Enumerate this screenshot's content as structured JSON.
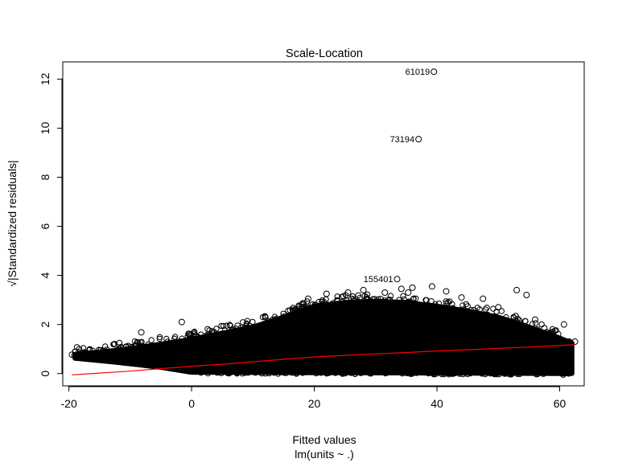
{
  "chart_data": {
    "type": "scatter",
    "title": "Scale-Location",
    "xlabel": "Fitted values",
    "xlabel_sub": "lm(units ~ .)",
    "ylabel": "√|Standardized residuals|",
    "xlim": [
      -21,
      64
    ],
    "ylim": [
      -0.5,
      12.7
    ],
    "xticks": [
      -20,
      0,
      20,
      40,
      60
    ],
    "xtick_labels": [
      "-20",
      "0",
      "20",
      "40",
      "60"
    ],
    "yticks": [
      0,
      2,
      4,
      6,
      8,
      10,
      12
    ],
    "ytick_labels": [
      "0",
      "2",
      "4",
      "6",
      "8",
      "10",
      "12"
    ],
    "grid": false,
    "marker": "open-circle",
    "point_color": "#000000",
    "smooth_color": "#ff0000",
    "labeled_points": [
      {
        "label": "61019",
        "x": 39.5,
        "y": 12.3
      },
      {
        "label": "73194",
        "x": 37.0,
        "y": 9.55
      },
      {
        "label": "155401",
        "x": 33.5,
        "y": 3.85
      }
    ],
    "points": [
      {
        "x": -19.5,
        "y": 0.77
      },
      {
        "x": -19.1,
        "y": 0.74
      },
      {
        "x": -18.5,
        "y": 0.72
      },
      {
        "x": -17.8,
        "y": 0.7
      },
      {
        "x": -16.9,
        "y": 0.69
      },
      {
        "x": -15.8,
        "y": 0.75
      },
      {
        "x": -14.5,
        "y": 0.82
      },
      {
        "x": -13.0,
        "y": 0.9
      },
      {
        "x": -11.5,
        "y": 0.95
      },
      {
        "x": -8.2,
        "y": 1.68
      },
      {
        "x": -6.0,
        "y": 1.1
      },
      {
        "x": -1.6,
        "y": 2.1
      },
      {
        "x": -0.5,
        "y": 1.62
      },
      {
        "x": 0.3,
        "y": 1.5
      },
      {
        "x": 7.5,
        "y": 1.95
      },
      {
        "x": 12.0,
        "y": 2.3
      },
      {
        "x": 16.5,
        "y": 2.6
      },
      {
        "x": 19.0,
        "y": 3.05
      },
      {
        "x": 22.0,
        "y": 3.25
      },
      {
        "x": 25.5,
        "y": 3.3
      },
      {
        "x": 28.0,
        "y": 3.4
      },
      {
        "x": 31.5,
        "y": 3.3
      },
      {
        "x": 34.2,
        "y": 3.45
      },
      {
        "x": 35.3,
        "y": 3.3
      },
      {
        "x": 36.0,
        "y": 3.5
      },
      {
        "x": 39.2,
        "y": 3.55
      },
      {
        "x": 41.5,
        "y": 3.35
      },
      {
        "x": 44.0,
        "y": 3.1
      },
      {
        "x": 47.5,
        "y": 3.05
      },
      {
        "x": 50.0,
        "y": 2.7
      },
      {
        "x": 53.0,
        "y": 3.4
      },
      {
        "x": 54.6,
        "y": 3.2
      },
      {
        "x": 56.0,
        "y": 2.2
      },
      {
        "x": 57.5,
        "y": 1.85
      },
      {
        "x": 59.0,
        "y": 1.5
      },
      {
        "x": 60.7,
        "y": 2.0
      },
      {
        "x": 60.5,
        "y": 0.75
      },
      {
        "x": 61.6,
        "y": 1.3
      },
      {
        "x": 62.5,
        "y": 1.3
      }
    ],
    "cloud": {
      "description": "dense band of points",
      "x_range": [
        -19,
        62
      ],
      "y_lower_at_x": [
        [
          -19,
          0.62
        ],
        [
          -12,
          0.45
        ],
        [
          -5,
          0.25
        ],
        [
          0,
          0.05
        ],
        [
          62,
          0.0
        ]
      ],
      "y_upper_at_x": [
        [
          -19,
          0.78
        ],
        [
          -12,
          0.95
        ],
        [
          -5,
          1.2
        ],
        [
          0,
          1.4
        ],
        [
          10,
          1.9
        ],
        [
          15,
          2.3
        ],
        [
          20,
          2.75
        ],
        [
          25,
          2.9
        ],
        [
          30,
          2.95
        ],
        [
          35,
          2.9
        ],
        [
          40,
          2.75
        ],
        [
          45,
          2.55
        ],
        [
          50,
          2.3
        ],
        [
          55,
          1.9
        ],
        [
          60,
          1.45
        ],
        [
          62,
          1.25
        ]
      ]
    },
    "smooth_line": [
      {
        "x": -19.5,
        "y": -0.05
      },
      {
        "x": -10,
        "y": 0.1
      },
      {
        "x": -5,
        "y": 0.2
      },
      {
        "x": 0,
        "y": 0.3
      },
      {
        "x": 5,
        "y": 0.38
      },
      {
        "x": 10,
        "y": 0.48
      },
      {
        "x": 15,
        "y": 0.58
      },
      {
        "x": 20,
        "y": 0.68
      },
      {
        "x": 25,
        "y": 0.74
      },
      {
        "x": 30,
        "y": 0.8
      },
      {
        "x": 35,
        "y": 0.86
      },
      {
        "x": 40,
        "y": 0.92
      },
      {
        "x": 45,
        "y": 0.97
      },
      {
        "x": 50,
        "y": 1.03
      },
      {
        "x": 55,
        "y": 1.08
      },
      {
        "x": 60,
        "y": 1.14
      },
      {
        "x": 62.5,
        "y": 1.18
      }
    ]
  }
}
